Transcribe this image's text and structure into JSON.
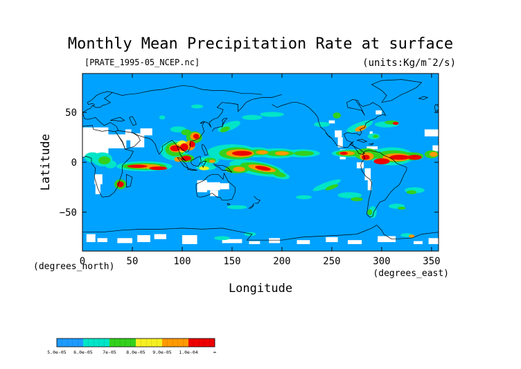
{
  "chart_data": {
    "type": "heatmap",
    "title": "Monthly Mean Precipitation Rate at surface",
    "source_label": "[PRATE_1995-05_NCEP.nc]",
    "units_label": "(units:Kg/m¯2/s)",
    "xlabel": "Longitude",
    "ylabel": "Latitude",
    "x_unit_label": "(degrees_east)",
    "y_unit_label": "(degrees_north)",
    "xlim": [
      0,
      357
    ],
    "ylim": [
      -89,
      89
    ],
    "x_ticks": [
      0,
      50,
      100,
      150,
      200,
      250,
      300,
      350
    ],
    "y_ticks": [
      -50,
      0,
      50
    ],
    "colorbar": {
      "tick_labels": [
        "5.0e-05",
        "6.0e-05",
        "7e-05",
        "8.0e-05",
        "9.0e-05",
        "1.0e-04",
        "∞"
      ],
      "levels": [
        5e-05,
        6e-05,
        7e-05,
        8e-05,
        9e-05,
        0.0001
      ],
      "colors": [
        "#1e9bff",
        "#00e5c8",
        "#33d11c",
        "#f6f022",
        "#ff9a00",
        "#ee0000"
      ]
    },
    "colors": {
      "background": "#00a2ff",
      "missing": "#ffffff",
      "level2": "#00e5c8",
      "level3": "#33d11c",
      "level4": "#f6f022",
      "level5": "#ff9a00",
      "level6": "#ee0000",
      "coastline": "#000000"
    },
    "grid": false,
    "legend_placement": "bottom-left"
  }
}
